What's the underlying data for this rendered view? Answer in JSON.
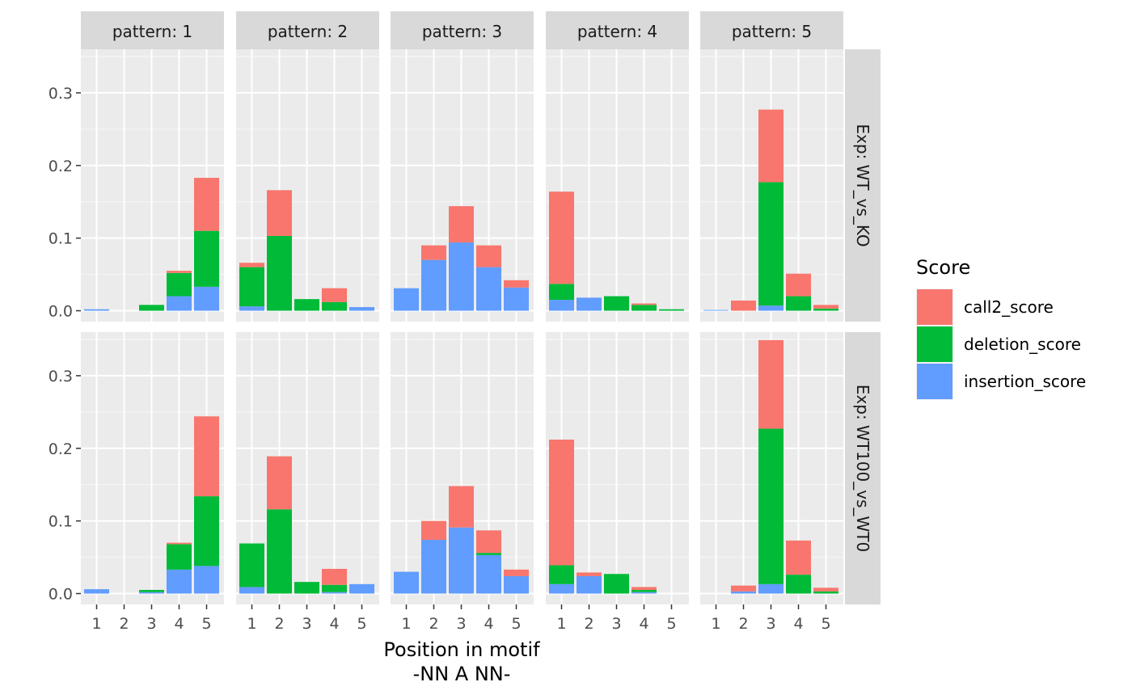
{
  "chart_data": {
    "type": "bar",
    "stacked": true,
    "xlabel": [
      "Position in motif",
      "-NN A NN-"
    ],
    "ylabel": "",
    "ylim": [
      -0.015,
      0.36
    ],
    "y_ticks": [
      0.0,
      0.1,
      0.2,
      0.3
    ],
    "y_tick_labels": [
      "0.0",
      "0.1",
      "0.2",
      "0.3"
    ],
    "categories": [
      "1",
      "2",
      "3",
      "4",
      "5"
    ],
    "facet_cols": [
      "pattern: 1",
      "pattern: 2",
      "pattern: 3",
      "pattern: 4",
      "pattern: 5"
    ],
    "facet_rows": [
      "Exp: WT_vs_KO",
      "Exp: WT100_vs_WT0"
    ],
    "grid": true,
    "legend": {
      "title": "Score",
      "placement": "right",
      "entries": [
        {
          "name": "call2_score",
          "color": "#F8766D"
        },
        {
          "name": "deletion_score",
          "color": "#00BA38"
        },
        {
          "name": "insertion_score",
          "color": "#619CFF"
        }
      ]
    },
    "stack_order": [
      "insertion_score",
      "deletion_score",
      "call2_score"
    ],
    "panels": [
      [
        {
          "insertion_score": [
            0.002,
            0.0,
            0.0,
            0.02,
            0.033
          ],
          "deletion_score": [
            0.0,
            0.0,
            0.008,
            0.032,
            0.077
          ],
          "call2_score": [
            0.0,
            0.0,
            0.0,
            0.003,
            0.073
          ]
        },
        {
          "insertion_score": [
            0.006,
            0.0,
            0.0,
            0.0,
            0.005
          ],
          "deletion_score": [
            0.054,
            0.103,
            0.016,
            0.012,
            0.0
          ],
          "call2_score": [
            0.006,
            0.063,
            0.0,
            0.019,
            0.0
          ]
        },
        {
          "insertion_score": [
            0.031,
            0.07,
            0.094,
            0.06,
            0.032
          ],
          "deletion_score": [
            0.0,
            0.0,
            0.0,
            0.0,
            0.0
          ],
          "call2_score": [
            0.0,
            0.02,
            0.05,
            0.03,
            0.01
          ]
        },
        {
          "insertion_score": [
            0.015,
            0.018,
            0.0,
            0.0,
            0.0
          ],
          "deletion_score": [
            0.022,
            0.0,
            0.02,
            0.008,
            0.002
          ],
          "call2_score": [
            0.127,
            0.0,
            0.0,
            0.002,
            0.0
          ]
        },
        {
          "insertion_score": [
            0.001,
            0.0,
            0.007,
            0.0,
            0.0
          ],
          "deletion_score": [
            0.0,
            0.0,
            0.17,
            0.02,
            0.003
          ],
          "call2_score": [
            0.0,
            0.014,
            0.1,
            0.031,
            0.005
          ]
        }
      ],
      [
        {
          "insertion_score": [
            0.006,
            0.0,
            0.002,
            0.033,
            0.038
          ],
          "deletion_score": [
            0.0,
            0.0,
            0.003,
            0.035,
            0.096
          ],
          "call2_score": [
            0.0,
            0.0,
            0.0,
            0.002,
            0.11
          ]
        },
        {
          "insertion_score": [
            0.009,
            0.0,
            0.0,
            0.002,
            0.013
          ],
          "deletion_score": [
            0.06,
            0.116,
            0.016,
            0.01,
            0.0
          ],
          "call2_score": [
            0.0,
            0.073,
            0.0,
            0.022,
            0.0
          ]
        },
        {
          "insertion_score": [
            0.03,
            0.074,
            0.091,
            0.053,
            0.024
          ],
          "deletion_score": [
            0.0,
            0.0,
            0.0,
            0.003,
            0.0
          ],
          "call2_score": [
            0.0,
            0.026,
            0.057,
            0.031,
            0.009
          ]
        },
        {
          "insertion_score": [
            0.013,
            0.024,
            0.0,
            0.002,
            0.0
          ],
          "deletion_score": [
            0.026,
            0.0,
            0.027,
            0.003,
            0.0
          ],
          "call2_score": [
            0.173,
            0.005,
            0.0,
            0.004,
            0.0
          ]
        },
        {
          "insertion_score": [
            0.0,
            0.003,
            0.013,
            0.0,
            0.0
          ],
          "deletion_score": [
            0.0,
            0.0,
            0.214,
            0.026,
            0.003
          ],
          "call2_score": [
            0.0,
            0.008,
            0.122,
            0.047,
            0.005
          ]
        }
      ]
    ]
  }
}
